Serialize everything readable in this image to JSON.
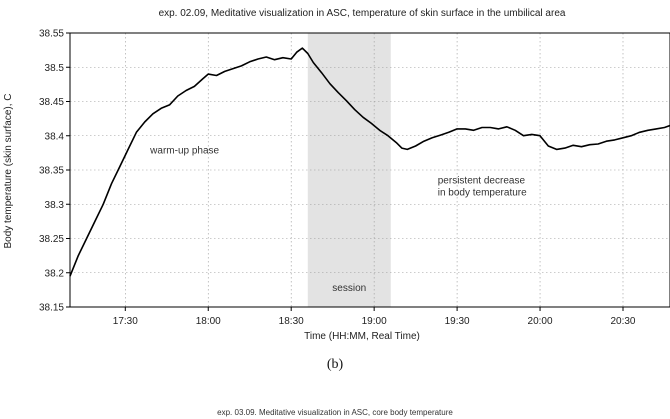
{
  "figure": {
    "caption": "(b)",
    "next_chart_title": "exp. 03.09. Meditative visualization in ASC, core body temperature"
  },
  "chart_data": {
    "type": "line",
    "title": "exp. 02.09, Meditative visualization in ASC, temperature of skin surface in the umbilical area",
    "xlabel": "Time (HH:MM, Real Time)",
    "ylabel": "Body temperature (skin surface), C",
    "xlim": [
      "17:10",
      "20:47"
    ],
    "ylim": [
      38.15,
      38.55
    ],
    "yticks": [
      38.15,
      38.2,
      38.25,
      38.3,
      38.35,
      38.4,
      38.45,
      38.5,
      38.55
    ],
    "xticks": [
      "17:30",
      "18:00",
      "18:30",
      "19:00",
      "19:30",
      "20:00",
      "20:30"
    ],
    "grid": true,
    "shaded_region": {
      "label": "session",
      "x_start": "18:36",
      "x_end": "19:06",
      "color": "#e3e3e3"
    },
    "annotations": [
      {
        "text": "warm-up phase",
        "x": "17:39",
        "y": 38.374
      },
      {
        "text": "persistent decrease",
        "x": "19:23",
        "y": 38.33
      },
      {
        "text": "in body temperature",
        "x": "19:23",
        "y": 38.313
      }
    ],
    "series": [
      {
        "color": "#000000",
        "x": [
          "17:10",
          "17:13",
          "17:16",
          "17:19",
          "17:22",
          "17:25",
          "17:28",
          "17:31",
          "17:34",
          "17:37",
          "17:40",
          "17:43",
          "17:46",
          "17:49",
          "17:52",
          "17:55",
          "17:58",
          "18:00",
          "18:03",
          "18:06",
          "18:09",
          "18:12",
          "18:15",
          "18:18",
          "18:21",
          "18:24",
          "18:27",
          "18:30",
          "18:32",
          "18:34",
          "18:36",
          "18:38",
          "18:41",
          "18:44",
          "18:47",
          "18:50",
          "18:53",
          "18:56",
          "18:59",
          "19:02",
          "19:05",
          "19:08",
          "19:10",
          "19:12",
          "19:15",
          "19:18",
          "19:21",
          "19:24",
          "19:27",
          "19:30",
          "19:33",
          "19:36",
          "19:39",
          "19:42",
          "19:45",
          "19:48",
          "19:51",
          "19:54",
          "19:57",
          "20:00",
          "20:03",
          "20:06",
          "20:09",
          "20:12",
          "20:15",
          "20:18",
          "20:21",
          "20:24",
          "20:27",
          "20:30",
          "20:33",
          "20:36",
          "20:39",
          "20:42",
          "20:45",
          "20:47"
        ],
        "y": [
          38.195,
          38.225,
          38.25,
          38.275,
          38.3,
          38.33,
          38.355,
          38.38,
          38.405,
          38.42,
          38.432,
          38.44,
          38.445,
          38.458,
          38.466,
          38.472,
          38.483,
          38.49,
          38.488,
          38.494,
          38.498,
          38.502,
          38.508,
          38.512,
          38.515,
          38.511,
          38.514,
          38.512,
          38.522,
          38.528,
          38.52,
          38.507,
          38.492,
          38.476,
          38.463,
          38.451,
          38.438,
          38.427,
          38.418,
          38.408,
          38.4,
          38.39,
          38.382,
          38.38,
          38.385,
          38.392,
          38.397,
          38.401,
          38.405,
          38.41,
          38.41,
          38.408,
          38.412,
          38.412,
          38.41,
          38.413,
          38.408,
          38.4,
          38.402,
          38.4,
          38.385,
          38.38,
          38.382,
          38.386,
          38.384,
          38.387,
          38.388,
          38.392,
          38.394,
          38.397,
          38.4,
          38.405,
          38.408,
          38.41,
          38.412,
          38.415
        ]
      }
    ]
  }
}
